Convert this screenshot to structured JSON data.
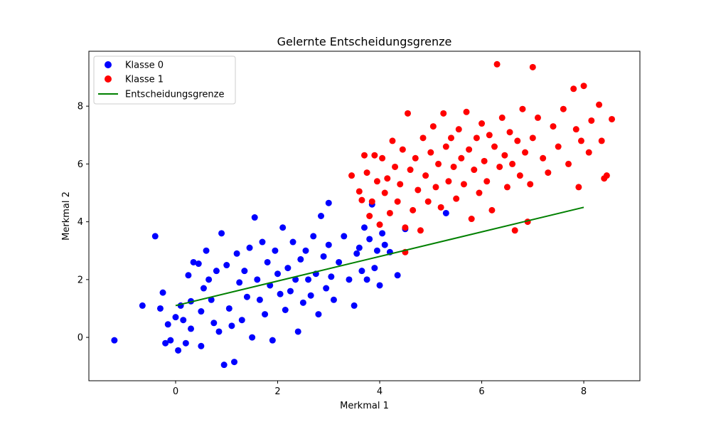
{
  "chart_data": {
    "type": "scatter",
    "title": "Gelernte Entscheidungsgrenze",
    "xlabel": "Merkmal 1",
    "ylabel": "Merkmal 2",
    "xlim": [
      -1.7,
      9.1
    ],
    "ylim": [
      -1.5,
      9.9
    ],
    "xticks": [
      0,
      2,
      4,
      6,
      8
    ],
    "yticks": [
      0,
      2,
      4,
      6,
      8
    ],
    "grid": false,
    "legend_position": "upper-left",
    "series": [
      {
        "name": "Klasse 0",
        "kind": "scatter",
        "color": "#0000ff",
        "points": [
          [
            -1.2,
            -0.1
          ],
          [
            -0.65,
            1.1
          ],
          [
            -0.4,
            3.5
          ],
          [
            -0.3,
            1.0
          ],
          [
            -0.25,
            1.55
          ],
          [
            -0.2,
            -0.2
          ],
          [
            -0.15,
            0.45
          ],
          [
            -0.1,
            -0.1
          ],
          [
            0.0,
            0.7
          ],
          [
            0.05,
            -0.45
          ],
          [
            0.1,
            1.1
          ],
          [
            0.15,
            0.6
          ],
          [
            0.2,
            -0.2
          ],
          [
            0.25,
            2.15
          ],
          [
            0.3,
            1.25
          ],
          [
            0.3,
            0.3
          ],
          [
            0.35,
            2.6
          ],
          [
            0.45,
            2.55
          ],
          [
            0.5,
            0.9
          ],
          [
            0.5,
            -0.3
          ],
          [
            0.55,
            1.7
          ],
          [
            0.6,
            3.0
          ],
          [
            0.65,
            2.0
          ],
          [
            0.7,
            1.3
          ],
          [
            0.75,
            0.5
          ],
          [
            0.8,
            2.3
          ],
          [
            0.85,
            0.2
          ],
          [
            0.9,
            3.6
          ],
          [
            0.95,
            -0.95
          ],
          [
            1.0,
            2.5
          ],
          [
            1.05,
            1.0
          ],
          [
            1.1,
            0.4
          ],
          [
            1.15,
            -0.85
          ],
          [
            1.2,
            2.9
          ],
          [
            1.25,
            1.9
          ],
          [
            1.3,
            0.6
          ],
          [
            1.35,
            2.3
          ],
          [
            1.4,
            1.4
          ],
          [
            1.45,
            3.1
          ],
          [
            1.5,
            0.0
          ],
          [
            1.55,
            4.15
          ],
          [
            1.6,
            2.0
          ],
          [
            1.65,
            1.3
          ],
          [
            1.7,
            3.3
          ],
          [
            1.75,
            0.8
          ],
          [
            1.8,
            2.6
          ],
          [
            1.85,
            1.8
          ],
          [
            1.9,
            -0.1
          ],
          [
            1.95,
            3.0
          ],
          [
            2.0,
            2.2
          ],
          [
            2.05,
            1.5
          ],
          [
            2.1,
            3.8
          ],
          [
            2.15,
            0.95
          ],
          [
            2.2,
            2.4
          ],
          [
            2.25,
            1.6
          ],
          [
            2.3,
            3.3
          ],
          [
            2.35,
            2.0
          ],
          [
            2.4,
            0.2
          ],
          [
            2.45,
            2.7
          ],
          [
            2.5,
            1.2
          ],
          [
            2.55,
            3.0
          ],
          [
            2.6,
            2.0
          ],
          [
            2.65,
            1.45
          ],
          [
            2.7,
            3.5
          ],
          [
            2.75,
            2.2
          ],
          [
            2.8,
            0.8
          ],
          [
            2.85,
            4.2
          ],
          [
            2.9,
            2.8
          ],
          [
            2.95,
            1.7
          ],
          [
            3.0,
            3.2
          ],
          [
            3.0,
            4.65
          ],
          [
            3.05,
            2.1
          ],
          [
            3.1,
            1.3
          ],
          [
            3.2,
            2.6
          ],
          [
            3.3,
            3.5
          ],
          [
            3.4,
            2.0
          ],
          [
            3.5,
            1.1
          ],
          [
            3.55,
            2.9
          ],
          [
            3.6,
            3.1
          ],
          [
            3.65,
            2.3
          ],
          [
            3.7,
            3.8
          ],
          [
            3.75,
            2.0
          ],
          [
            3.8,
            3.4
          ],
          [
            3.85,
            4.6
          ],
          [
            3.9,
            2.4
          ],
          [
            3.95,
            3.0
          ],
          [
            4.0,
            1.8
          ],
          [
            4.05,
            3.6
          ],
          [
            4.1,
            3.2
          ],
          [
            4.2,
            2.95
          ],
          [
            4.35,
            2.15
          ],
          [
            4.5,
            3.75
          ],
          [
            5.3,
            4.3
          ]
        ]
      },
      {
        "name": "Klasse 1",
        "kind": "scatter",
        "color": "#ff0000",
        "points": [
          [
            3.45,
            5.6
          ],
          [
            3.6,
            5.05
          ],
          [
            3.65,
            4.75
          ],
          [
            3.7,
            6.3
          ],
          [
            3.75,
            5.7
          ],
          [
            3.8,
            4.2
          ],
          [
            3.85,
            4.7
          ],
          [
            3.9,
            6.3
          ],
          [
            3.95,
            5.4
          ],
          [
            4.0,
            3.9
          ],
          [
            4.05,
            6.2
          ],
          [
            4.1,
            5.0
          ],
          [
            4.15,
            5.5
          ],
          [
            4.2,
            4.3
          ],
          [
            4.25,
            6.8
          ],
          [
            4.3,
            5.9
          ],
          [
            4.35,
            4.7
          ],
          [
            4.4,
            5.3
          ],
          [
            4.45,
            6.5
          ],
          [
            4.5,
            3.8
          ],
          [
            4.5,
            2.95
          ],
          [
            4.55,
            7.75
          ],
          [
            4.6,
            5.8
          ],
          [
            4.65,
            4.4
          ],
          [
            4.7,
            6.2
          ],
          [
            4.75,
            5.1
          ],
          [
            4.8,
            3.7
          ],
          [
            4.85,
            6.9
          ],
          [
            4.9,
            5.6
          ],
          [
            4.95,
            4.7
          ],
          [
            5.0,
            6.4
          ],
          [
            5.05,
            7.3
          ],
          [
            5.1,
            5.2
          ],
          [
            5.15,
            6.0
          ],
          [
            5.2,
            4.5
          ],
          [
            5.25,
            7.75
          ],
          [
            5.3,
            6.6
          ],
          [
            5.35,
            5.4
          ],
          [
            5.4,
            6.9
          ],
          [
            5.45,
            5.9
          ],
          [
            5.5,
            4.8
          ],
          [
            5.55,
            7.2
          ],
          [
            5.6,
            6.2
          ],
          [
            5.65,
            5.3
          ],
          [
            5.7,
            7.8
          ],
          [
            5.75,
            6.5
          ],
          [
            5.8,
            4.1
          ],
          [
            5.85,
            5.8
          ],
          [
            5.9,
            6.9
          ],
          [
            5.95,
            5.0
          ],
          [
            6.0,
            7.4
          ],
          [
            6.05,
            6.1
          ],
          [
            6.1,
            5.4
          ],
          [
            6.15,
            7.0
          ],
          [
            6.2,
            4.4
          ],
          [
            6.25,
            6.6
          ],
          [
            6.3,
            9.45
          ],
          [
            6.35,
            5.9
          ],
          [
            6.4,
            7.6
          ],
          [
            6.45,
            6.3
          ],
          [
            6.5,
            5.2
          ],
          [
            6.55,
            7.1
          ],
          [
            6.6,
            6.0
          ],
          [
            6.65,
            3.7
          ],
          [
            6.7,
            6.8
          ],
          [
            6.75,
            5.6
          ],
          [
            6.8,
            7.9
          ],
          [
            6.85,
            6.4
          ],
          [
            6.9,
            4.0
          ],
          [
            6.95,
            5.3
          ],
          [
            7.0,
            9.35
          ],
          [
            7.0,
            6.9
          ],
          [
            7.1,
            7.6
          ],
          [
            7.2,
            6.2
          ],
          [
            7.3,
            5.7
          ],
          [
            7.4,
            7.3
          ],
          [
            7.5,
            6.6
          ],
          [
            7.6,
            7.9
          ],
          [
            7.7,
            6.0
          ],
          [
            7.8,
            8.6
          ],
          [
            7.85,
            7.2
          ],
          [
            7.9,
            5.2
          ],
          [
            7.95,
            6.8
          ],
          [
            8.0,
            8.7
          ],
          [
            8.1,
            6.4
          ],
          [
            8.15,
            7.5
          ],
          [
            8.3,
            8.05
          ],
          [
            8.35,
            6.8
          ],
          [
            8.4,
            5.5
          ],
          [
            8.45,
            5.6
          ],
          [
            8.55,
            7.55
          ]
        ]
      },
      {
        "name": "Entscheidungsgrenze",
        "kind": "line",
        "color": "#008000",
        "points": [
          [
            0.0,
            1.1
          ],
          [
            8.0,
            4.5
          ]
        ]
      }
    ]
  }
}
